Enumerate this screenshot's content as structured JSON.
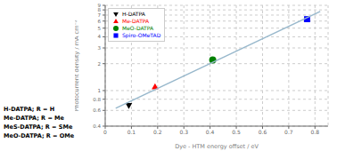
{
  "chart_data": {
    "type": "scatter",
    "xlabel": "Dye - HTM energy offset / eV",
    "ylabel": "Photocurrent density / mA cm⁻²",
    "xlim": [
      0,
      0.85
    ],
    "ylim": [
      0.4,
      9
    ],
    "xticks": [
      0,
      0.1,
      0.2,
      0.3,
      0.4,
      0.5,
      0.6,
      0.7,
      0.8
    ],
    "yticks": [
      0.4,
      0.6,
      0.8,
      1,
      2,
      3,
      4,
      5,
      6,
      7,
      8,
      9
    ],
    "log": "y",
    "grid": true,
    "legend": "upper left",
    "series": [
      {
        "name": "H-DATPA",
        "color": "black",
        "marker": "triangle-down",
        "x": [
          0.09
        ],
        "values": [
          0.68
        ]
      },
      {
        "name": "Me-DATPA",
        "color": "red",
        "marker": "triangle-up",
        "x": [
          0.19
        ],
        "values": [
          1.1
        ]
      },
      {
        "name": "MeO-DATPA",
        "color": "green",
        "marker": "circle",
        "x": [
          0.41
        ],
        "values": [
          2.2
        ]
      },
      {
        "name": "Spiro-OMeTAD",
        "color": "blue",
        "marker": "square",
        "x": [
          0.77
        ],
        "values": [
          6.3
        ]
      },
      {
        "type": "line",
        "color": "#98b8cc",
        "x": [
          0.04,
          0.82
        ],
        "values": [
          0.635,
          7.68
        ]
      }
    ],
    "annotations": [
      "H-DATPA; R = H",
      "Me-DATPA; R = Me",
      "MeS-DATPA; R = SMe",
      "MeO-DATPA; R = OMe"
    ]
  }
}
